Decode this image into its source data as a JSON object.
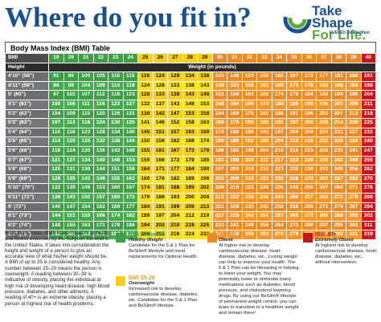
{
  "header": {
    "title": "Where do you fit in?",
    "logo_line1": "Take Shape",
    "logo_line2": "For Life.",
    "logo_fueled": "FUELED BY Medifast"
  },
  "table": {
    "title": "Body Mass Index (BMI) Table",
    "bmi_label": "BMI",
    "bmi": [
      19,
      20,
      21,
      22,
      23,
      24,
      25,
      26,
      27,
      28,
      29,
      30,
      31,
      32,
      33,
      34,
      35,
      36,
      37,
      38,
      39,
      40
    ],
    "height_label": "Height",
    "weight_label": "Weight (in pounds)",
    "rows": [
      {
        "height": "4'10\" (58\")",
        "weights": [
          91,
          96,
          100,
          105,
          110,
          115,
          119,
          124,
          129,
          134,
          138,
          143,
          148,
          153,
          158,
          162,
          167,
          172,
          177,
          181,
          186,
          191
        ]
      },
      {
        "height": "4'11\" (59\")",
        "weights": [
          94,
          99,
          104,
          109,
          114,
          119,
          124,
          128,
          133,
          138,
          143,
          148,
          153,
          158,
          163,
          168,
          173,
          178,
          183,
          188,
          193,
          198
        ]
      },
      {
        "height": "5' (60\")",
        "weights": [
          97,
          102,
          107,
          112,
          118,
          123,
          128,
          133,
          138,
          143,
          148,
          153,
          158,
          163,
          168,
          174,
          179,
          184,
          189,
          194,
          199,
          204
        ]
      },
      {
        "height": "5'1\" (61\")",
        "weights": [
          100,
          106,
          111,
          116,
          122,
          127,
          132,
          137,
          143,
          148,
          153,
          158,
          164,
          169,
          174,
          180,
          185,
          190,
          195,
          201,
          206,
          211
        ]
      },
      {
        "height": "5'2\" (62\")",
        "weights": [
          104,
          109,
          115,
          120,
          126,
          131,
          136,
          142,
          147,
          153,
          158,
          164,
          169,
          175,
          180,
          186,
          191,
          196,
          202,
          207,
          213,
          218
        ]
      },
      {
        "height": "5'3\" (63\")",
        "weights": [
          107,
          113,
          118,
          124,
          130,
          135,
          141,
          146,
          152,
          158,
          163,
          169,
          175,
          180,
          186,
          191,
          197,
          203,
          208,
          214,
          220,
          225
        ]
      },
      {
        "height": "5'4\" (64\")",
        "weights": [
          110,
          116,
          122,
          128,
          134,
          140,
          145,
          151,
          157,
          163,
          169,
          174,
          180,
          186,
          192,
          197,
          204,
          209,
          215,
          221,
          227,
          232
        ]
      },
      {
        "height": "5'5\" (65\")",
        "weights": [
          114,
          120,
          126,
          132,
          138,
          144,
          150,
          156,
          162,
          168,
          174,
          180,
          186,
          192,
          198,
          204,
          210,
          216,
          222,
          228,
          234,
          240
        ]
      },
      {
        "height": "5'6\" (66\")",
        "weights": [
          118,
          124,
          130,
          136,
          142,
          148,
          155,
          161,
          167,
          173,
          179,
          186,
          192,
          198,
          204,
          210,
          216,
          223,
          229,
          235,
          241,
          247
        ]
      },
      {
        "height": "5'7\" (67\")",
        "weights": [
          121,
          127,
          134,
          140,
          146,
          153,
          159,
          166,
          172,
          178,
          185,
          191,
          198,
          204,
          211,
          217,
          223,
          230,
          236,
          242,
          249,
          255
        ]
      },
      {
        "height": "5'8\" (68\")",
        "weights": [
          125,
          131,
          138,
          144,
          151,
          158,
          164,
          171,
          177,
          184,
          190,
          197,
          203,
          210,
          216,
          223,
          230,
          236,
          243,
          249,
          256,
          262
        ]
      },
      {
        "height": "5'9\" (69\")",
        "weights": [
          128,
          135,
          142,
          149,
          155,
          162,
          169,
          176,
          182,
          189,
          196,
          203,
          209,
          216,
          223,
          230,
          236,
          243,
          250,
          257,
          263,
          270
        ]
      },
      {
        "height": "5'10\" (70\")",
        "weights": [
          132,
          139,
          146,
          153,
          160,
          167,
          174,
          181,
          188,
          195,
          202,
          209,
          216,
          222,
          229,
          236,
          243,
          250,
          257,
          264,
          271,
          278
        ]
      },
      {
        "height": "5'11\" (71\")",
        "weights": [
          136,
          143,
          150,
          157,
          165,
          172,
          179,
          186,
          193,
          200,
          208,
          215,
          222,
          229,
          236,
          243,
          250,
          257,
          265,
          272,
          279,
          286
        ]
      },
      {
        "height": "6' (72\")",
        "weights": [
          140,
          147,
          154,
          162,
          169,
          177,
          184,
          191,
          199,
          206,
          213,
          221,
          228,
          235,
          242,
          250,
          258,
          265,
          272,
          279,
          287,
          294
        ]
      },
      {
        "height": "6'1\" (73\")",
        "weights": [
          144,
          151,
          159,
          166,
          174,
          182,
          189,
          197,
          204,
          212,
          219,
          227,
          235,
          242,
          250,
          257,
          265,
          272,
          280,
          288,
          295,
          302
        ]
      },
      {
        "height": "6'2\" (74\")",
        "weights": [
          148,
          155,
          163,
          171,
          179,
          186,
          194,
          202,
          210,
          218,
          225,
          233,
          241,
          249,
          256,
          264,
          272,
          280,
          287,
          295,
          303,
          311
        ]
      },
      {
        "height": "6'3\" (75\")",
        "weights": [
          152,
          160,
          168,
          176,
          184,
          192,
          200,
          208,
          216,
          224,
          232,
          240,
          248,
          256,
          264,
          272,
          279,
          287,
          295,
          303,
          311,
          319
        ]
      }
    ]
  },
  "description": "Body Mass Index (BMI) is the measure of health and fitness endorsed by the Surgeon General of the United States. It takes into consideration the height and weight of a person to give an accurate view of what his/her weight should be. A BMI of up to 25 is considered healthy. Any number between 25–29 means the person is overweight. A reading between 30–39 is indicative of obesity, placing the individual at high risk of developing heart disease, high blood pressure, diabetes, and other ailments. A reading of 40+ is an extreme obesity, placing a person at highest risk of health problems.",
  "legend": [
    {
      "title": "BMI Below 25",
      "subtitle": "Healthy Weight",
      "text": "Candidate for the 5 & 1 Plan for BeSlim® lifestyle and meal replacements for Optimal Health."
    },
    {
      "title": "BMI 25-29",
      "subtitle": "Overweight",
      "text": "Increased risk to develop cardiovascular disease, diabetes, etc. Candidate for the 5 & 1 Plan and BeSlim® lifestyle."
    },
    {
      "title": "BMI 30-39",
      "subtitle": "Obese",
      "text": "At higher risk to develop cardiovascular disease, heart disease, diabetes, etc., Losing weight can help to improve your health. The 5 & 1 Plan can be lifesaving in helping to lower your weight. You may potentially lower or eliminate many medications such as diabetes, blood pressure, and cholesterol lowering drugs. By using our BeSlim® lifestyle of permanent weight control, you can learn to transition to a healthier weight and remain there!"
    },
    {
      "title": "BMI 40+",
      "subtitle": "Extremely Obese",
      "text": "At highest risk to develop cardiovascular disease, heart disease, diabetes, etc., without intervention."
    }
  ]
}
